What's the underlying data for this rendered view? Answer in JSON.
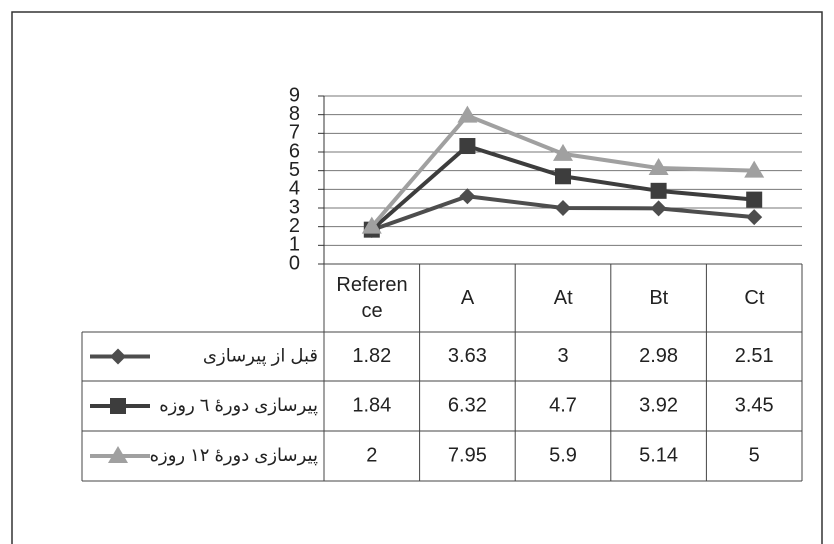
{
  "chart_data": {
    "type": "line",
    "categories": [
      "Reference",
      "A",
      "At",
      "Bt",
      "Ct"
    ],
    "series": [
      {
        "name": "قبل از پیرسازی",
        "color": "#4d4d4d",
        "marker": "diamond",
        "values": [
          1.82,
          3.63,
          3,
          2.98,
          2.51
        ]
      },
      {
        "name": "پیرسازی دورهٔ ٦ روزه",
        "color": "#3d3d3d",
        "marker": "square",
        "values": [
          1.84,
          6.32,
          4.7,
          3.92,
          3.45
        ]
      },
      {
        "name": "پیرسازی دورهٔ ١٢ روزه",
        "color": "#a0a0a0",
        "marker": "triangle",
        "values": [
          2,
          7.95,
          5.9,
          5.14,
          5
        ]
      }
    ],
    "ylim": [
      0,
      9
    ],
    "yticks": [
      0,
      1,
      2,
      3,
      4,
      5,
      6,
      7,
      8,
      9
    ],
    "grid": true,
    "data_table": true
  }
}
